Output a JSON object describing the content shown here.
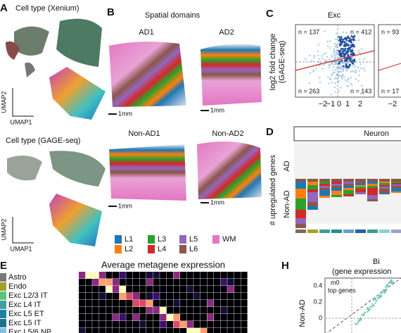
{
  "panel_a": {
    "label": "A",
    "title_top": "Cell type (Xenium)",
    "title_bottom": "Cell type (GAGE-seq)",
    "axis_y": "UMAP2",
    "axis_x": "UMAP1"
  },
  "panel_b": {
    "label": "B",
    "title": "Spatial domains",
    "samples": [
      "AD1",
      "AD2",
      "Non-AD1",
      "Non-AD2"
    ],
    "scale": "1mm",
    "legend": [
      {
        "name": "L1",
        "color": "#1f77b4"
      },
      {
        "name": "L2",
        "color": "#ff7f0e"
      },
      {
        "name": "L3",
        "color": "#2ca02c"
      },
      {
        "name": "L4",
        "color": "#d62728"
      },
      {
        "name": "L5",
        "color": "#9467bd"
      },
      {
        "name": "L6",
        "color": "#8c564b"
      },
      {
        "name": "WM",
        "color": "#e377c2"
      }
    ]
  },
  "panel_c": {
    "label": "C",
    "title": "Exc",
    "y_label_1": "log2 fold change",
    "y_label_2": "(GAGE-seq)",
    "counts": [
      "n = 137",
      "n = 412",
      "n = 263",
      "n = 143"
    ],
    "next_counts": [
      "n = 93",
      "n = 17"
    ],
    "xticks": [
      "−2",
      "−1",
      "0",
      "1",
      "2"
    ],
    "next_tick": "−2"
  },
  "panel_d": {
    "label": "D",
    "header": "Neuron",
    "y_label": "# upregulated genes",
    "y_top": "AD",
    "y_bottom": "Non-AD"
  },
  "panel_e": {
    "label": "E",
    "title": "Average metagene expression",
    "rows": [
      "Astro",
      "Endo",
      "Exc L2/3 IT",
      "Exc L4 IT",
      "Exc L5 ET",
      "Exc L5 IT",
      "Exc L5/6 NP"
    ]
  },
  "panel_h": {
    "label": "H",
    "title_1": "Bi",
    "title_2": "(gene expression",
    "note_1": "m0",
    "note_2": "top genes",
    "yticks": [
      "0.4",
      "0.2",
      "0"
    ],
    "y_label": "Non-AD"
  }
}
